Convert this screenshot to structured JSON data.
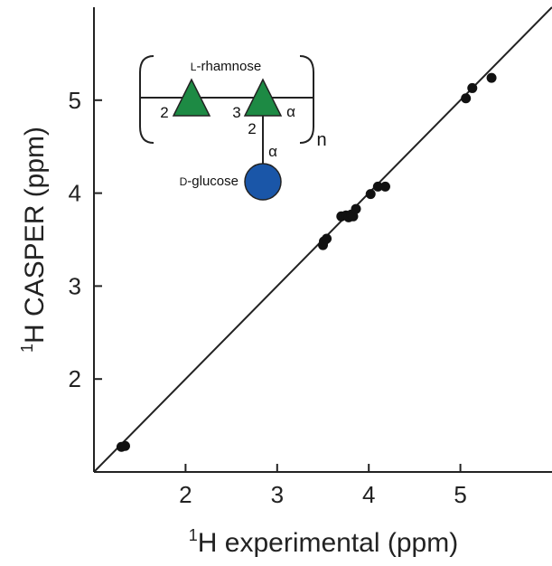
{
  "chart_data": {
    "type": "scatter",
    "xlabel": {
      "sup": "1",
      "text": "H experimental (ppm)"
    },
    "ylabel": {
      "sup": "1",
      "text": "H CASPER (ppm)"
    },
    "xlim": [
      1.0,
      6.0
    ],
    "ylim": [
      1.0,
      6.0
    ],
    "xticks": [
      2,
      3,
      4,
      5
    ],
    "yticks": [
      2,
      3,
      4,
      5
    ],
    "grid": false,
    "reference_line": "y = x",
    "points": [
      {
        "x": 1.3,
        "y": 1.27
      },
      {
        "x": 1.34,
        "y": 1.28
      },
      {
        "x": 3.5,
        "y": 3.44
      },
      {
        "x": 3.51,
        "y": 3.48
      },
      {
        "x": 3.54,
        "y": 3.51
      },
      {
        "x": 3.7,
        "y": 3.75
      },
      {
        "x": 3.75,
        "y": 3.76
      },
      {
        "x": 3.78,
        "y": 3.74
      },
      {
        "x": 3.81,
        "y": 3.77
      },
      {
        "x": 3.83,
        "y": 3.75
      },
      {
        "x": 3.86,
        "y": 3.83
      },
      {
        "x": 4.02,
        "y": 3.99
      },
      {
        "x": 4.1,
        "y": 4.07
      },
      {
        "x": 4.18,
        "y": 4.07
      },
      {
        "x": 5.06,
        "y": 5.02
      },
      {
        "x": 5.13,
        "y": 5.13
      },
      {
        "x": 5.34,
        "y": 5.24
      }
    ]
  },
  "inset": {
    "rhamnose_label_prefix": "L",
    "rhamnose_label_rest": "-rhamnose",
    "glucose_label_prefix": "D",
    "glucose_label_rest": "-glucose",
    "link_left": "2",
    "link_mid": "3",
    "link_alpha_right": "α",
    "link_branch": "2",
    "link_alpha_branch": "α",
    "repeat": "n",
    "colors": {
      "rhamnose": "#1d8a44",
      "glucose": "#1a56a8"
    }
  }
}
